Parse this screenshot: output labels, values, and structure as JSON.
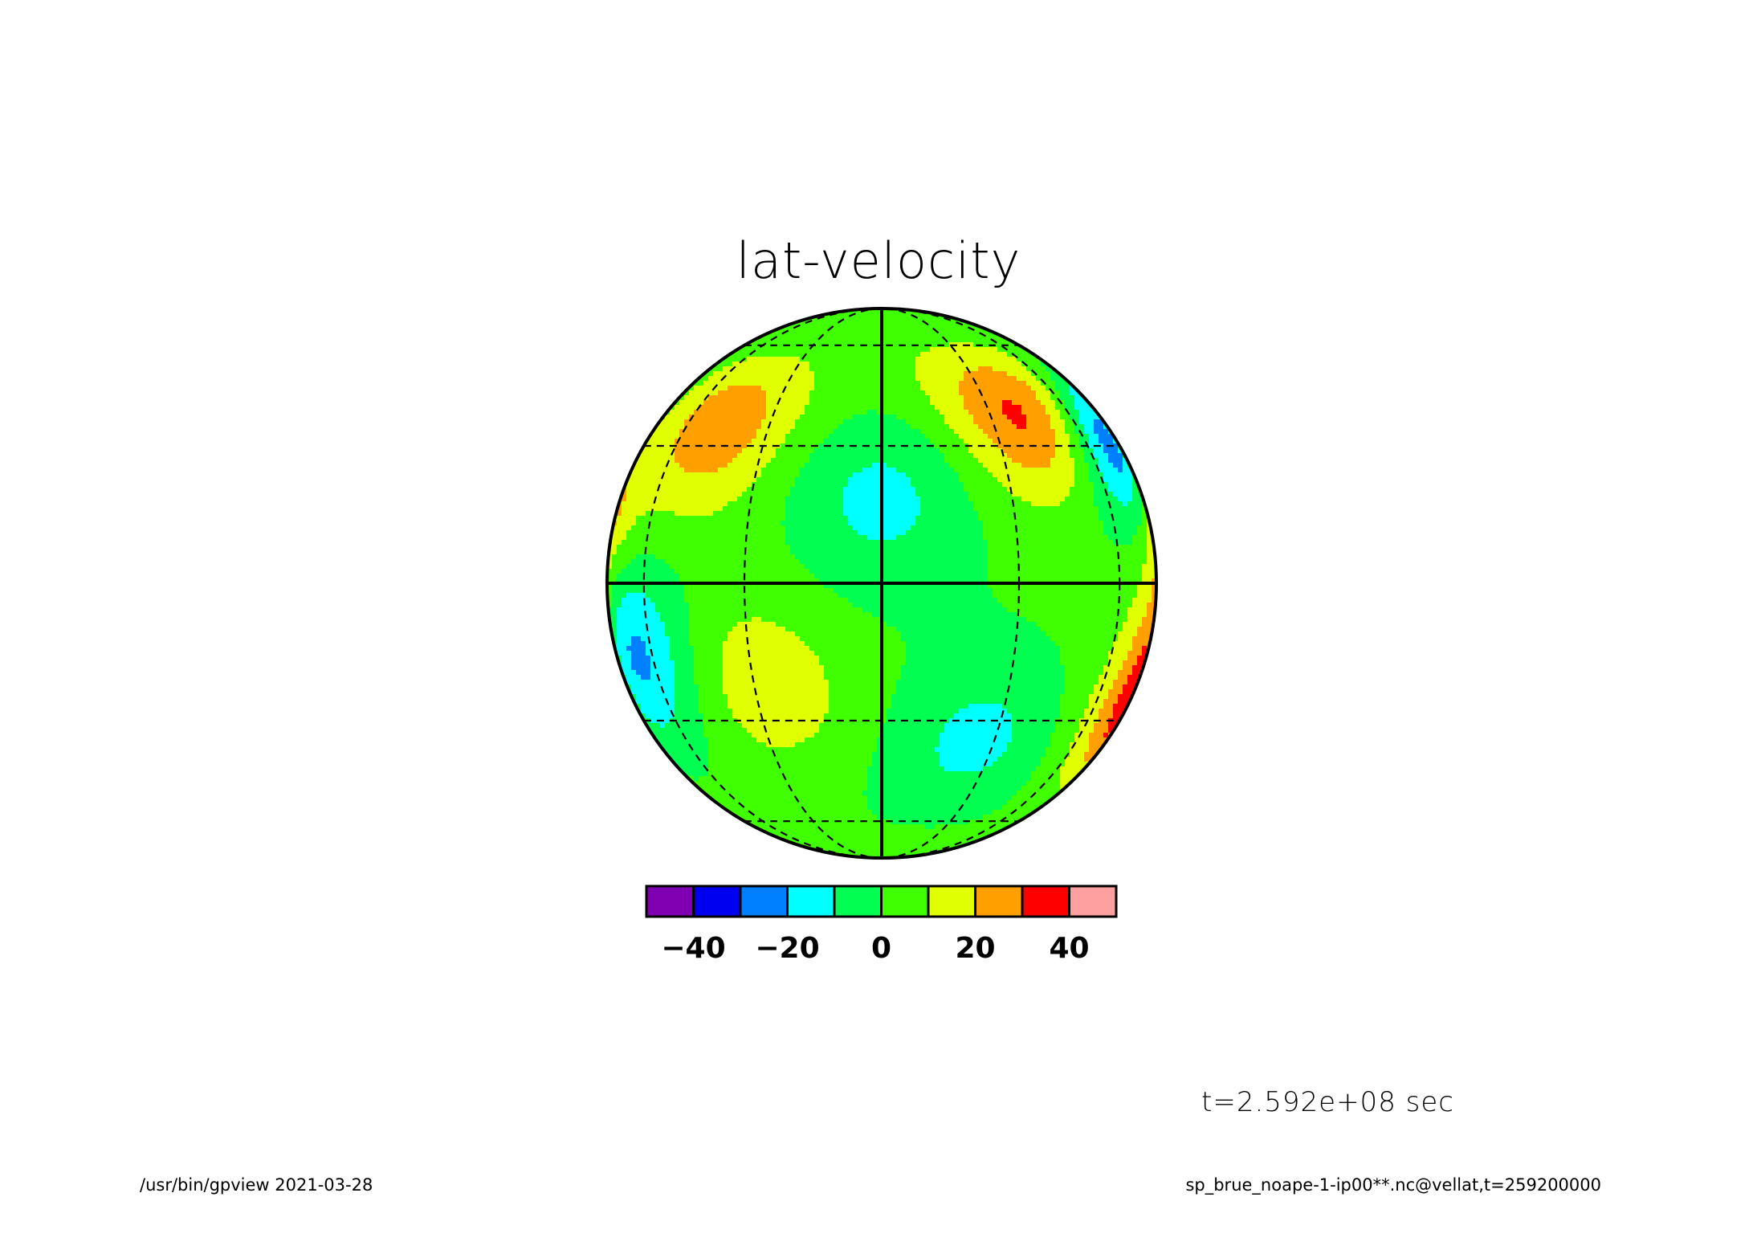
{
  "chart_data": {
    "type": "heatmap",
    "projection": "orthographic",
    "title": "lat-velocity",
    "colorbar": {
      "levels": [
        -50,
        -40,
        -30,
        -20,
        -10,
        0,
        10,
        20,
        30,
        40,
        50
      ],
      "colors": [
        "#7f00b2",
        "#0000f0",
        "#0080ff",
        "#00ffff",
        "#00ff50",
        "#40ff00",
        "#e0ff00",
        "#ffa000",
        "#ff0000",
        "#ffa0a0"
      ],
      "tick_values": [
        -40,
        -20,
        0,
        20,
        40
      ],
      "tick_labels": [
        "-40",
        "-20",
        "0",
        "20",
        "40"
      ]
    },
    "field_features": [
      {
        "lon": -45,
        "lat": 35,
        "value": 25
      },
      {
        "lon": 42,
        "lat": 38,
        "value": 35
      },
      {
        "lon": 72,
        "lat": 30,
        "value": -35
      },
      {
        "lon": 88,
        "lat": 10,
        "value": 20
      },
      {
        "lon": 0,
        "lat": 18,
        "value": -15
      },
      {
        "lon": -67,
        "lat": -15,
        "value": -25
      },
      {
        "lon": -28,
        "lat": -22,
        "value": 15
      },
      {
        "lon": 25,
        "lat": -35,
        "value": -15
      },
      {
        "lon": 82,
        "lat": -25,
        "value": 35
      },
      {
        "lon": -85,
        "lat": 15,
        "value": 20
      }
    ],
    "time_label": "t=2.592e+08 sec"
  },
  "footer": {
    "left": "/usr/bin/gpview   2021-03-28",
    "right": "sp_brue_noape-1-ip00**.nc@vellat,t=259200000"
  }
}
